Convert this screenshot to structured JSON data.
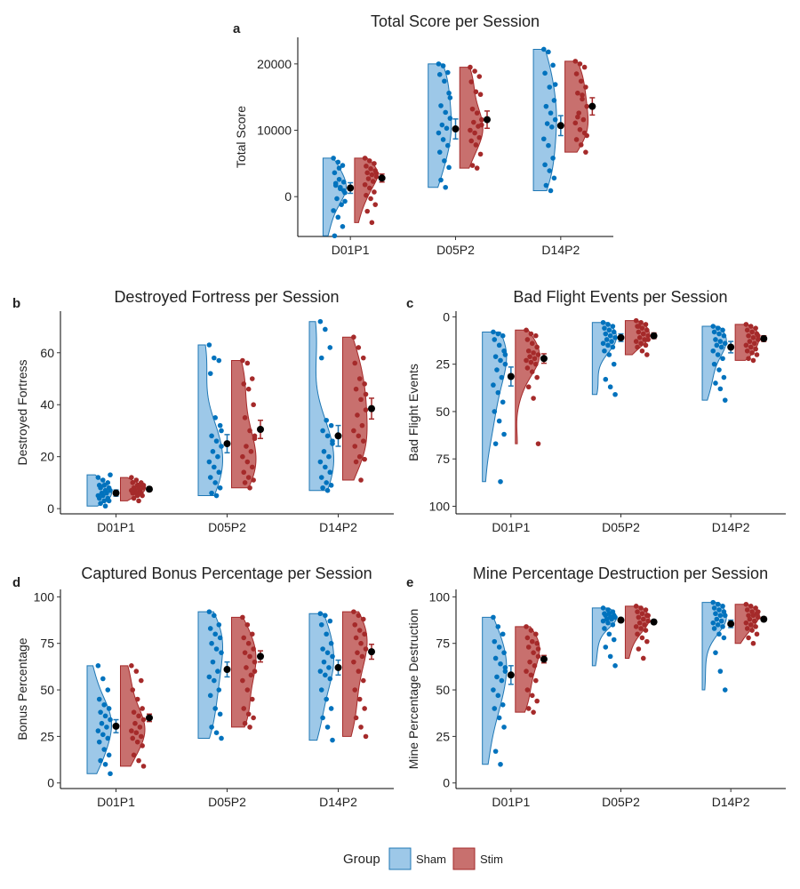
{
  "legend": {
    "title": "Group",
    "items": [
      {
        "label": "Sham",
        "fill": "#9DC8E8",
        "stroke": "#1F77B4"
      },
      {
        "label": "Stim",
        "fill": "#C8706E",
        "stroke": "#A52A2A"
      }
    ]
  },
  "colors": {
    "sham_point": "#0072BD",
    "stim_point": "#A52A2A",
    "mean_point": "#000000"
  },
  "chart_data": [
    {
      "panel": "a",
      "type": "scatter",
      "title": "Total Score per Session",
      "xlabel": "",
      "ylabel": "Total Score",
      "categories": [
        "D01P1",
        "D05P2",
        "D14P2"
      ],
      "yticks": [
        0,
        10000,
        20000
      ],
      "ylim": [
        -6000,
        24000
      ],
      "reverse_y": false,
      "series": [
        {
          "name": "Sham",
          "mean": [
            1300,
            10200,
            10700
          ],
          "se": [
            800,
            1500,
            1500
          ],
          "points": [
            [
              5800,
              5200,
              4700,
              3600,
              2600,
              2200,
              1700,
              1200,
              600,
              -300,
              -1200,
              -2100,
              -3100,
              -4500,
              -5900,
              4300,
              900,
              2000,
              1400,
              -700
            ],
            [
              20000,
              19700,
              18700,
              18400,
              17400,
              15600,
              13700,
              12700,
              11800,
              10800,
              10300,
              9600,
              8600,
              7700,
              6700,
              5400,
              4400,
              2500,
              1400,
              14900
            ],
            [
              22200,
              21800,
              19800,
              18600,
              16500,
              14500,
              13600,
              12600,
              11600,
              11000,
              10500,
              8700,
              7700,
              5800,
              4800,
              3900,
              2800,
              1700,
              900,
              16900
            ]
          ]
        },
        {
          "name": "Stim",
          "mean": [
            2800,
            11600,
            13600
          ],
          "se": [
            600,
            1300,
            1300
          ],
          "points": [
            [
              5800,
              5400,
              5000,
              4600,
              4200,
              3900,
              3600,
              3300,
              3000,
              2700,
              2300,
              1800,
              1300,
              700,
              200,
              -300,
              -1200,
              -2200,
              -3900,
              3500
            ],
            [
              19500,
              18900,
              18100,
              17300,
              15800,
              15400,
              13200,
              12600,
              11600,
              11200,
              10600,
              10000,
              9600,
              8900,
              8400,
              7800,
              6400,
              4700,
              4300,
              10800
            ],
            [
              20400,
              20000,
              19500,
              18500,
              17400,
              16500,
              15600,
              14700,
              13600,
              12600,
              11600,
              11100,
              10100,
              9600,
              8600,
              7800,
              6700,
              12000,
              15300,
              9200
            ]
          ]
        }
      ]
    },
    {
      "panel": "b",
      "type": "scatter",
      "title": "Destroyed Fortress per Session",
      "xlabel": "",
      "ylabel": "Destroyed Fortress",
      "categories": [
        "D01P1",
        "D05P2",
        "D14P2"
      ],
      "yticks": [
        0,
        20,
        40,
        60
      ],
      "ylim": [
        -2,
        76
      ],
      "reverse_y": false,
      "series": [
        {
          "name": "Sham",
          "mean": [
            6,
            25,
            28
          ],
          "se": [
            1.2,
            3.5,
            4
          ],
          "points": [
            [
              12,
              11,
              10,
              9,
              9,
              8,
              8,
              7,
              7,
              6,
              6,
              5,
              5,
              4,
              4,
              3,
              3,
              2,
              1,
              13
            ],
            [
              63,
              58,
              57,
              52,
              35,
              32,
              28,
              26,
              24,
              22,
              20,
              18,
              16,
              14,
              12,
              10,
              8,
              6,
              5,
              30
            ],
            [
              72,
              69,
              62,
              58,
              34,
              32,
              30,
              28,
              25,
              22,
              20,
              18,
              16,
              14,
              12,
              10,
              9,
              8,
              7,
              26
            ]
          ]
        },
        {
          "name": "Stim",
          "mean": [
            7.5,
            30.5,
            38.5
          ],
          "se": [
            0.8,
            3.5,
            4
          ],
          "points": [
            [
              12,
              11,
              10,
              10,
              9,
              9,
              8,
              8,
              8,
              7,
              7,
              7,
              6,
              6,
              6,
              5,
              5,
              4,
              3,
              9
            ],
            [
              57,
              56,
              50,
              48,
              46,
              40,
              35,
              30,
              27,
              24,
              22,
              20,
              18,
              16,
              14,
              12,
              11,
              10,
              8,
              28
            ],
            [
              66,
              62,
              58,
              56,
              50,
              48,
              46,
              42,
              38,
              36,
              32,
              30,
              28,
              26,
              24,
              20,
              19,
              18,
              11,
              44
            ]
          ]
        }
      ]
    },
    {
      "panel": "c",
      "type": "scatter",
      "title": "Bad Flight Events per Session",
      "xlabel": "",
      "ylabel": "Bad Flight Events",
      "categories": [
        "D01P1",
        "D05P2",
        "D14P2"
      ],
      "yticks": [
        0,
        25,
        50,
        75,
        100
      ],
      "ylim": [
        -3,
        104
      ],
      "reverse_y": true,
      "series": [
        {
          "name": "Sham",
          "mean": [
            31.5,
            11,
            16
          ],
          "se": [
            5,
            2,
            3
          ],
          "points": [
            [
              8,
              9,
              10,
              12,
              15,
              18,
              21,
              23,
              25,
              28,
              32,
              36,
              40,
              45,
              50,
              55,
              62,
              67,
              87,
              20
            ],
            [
              3,
              4,
              5,
              6,
              7,
              8,
              9,
              10,
              11,
              12,
              13,
              14,
              15,
              16,
              18,
              20,
              25,
              33,
              37,
              41
            ],
            [
              5,
              6,
              7,
              8,
              9,
              10,
              12,
              13,
              14,
              15,
              16,
              18,
              20,
              22,
              25,
              28,
              32,
              35,
              38,
              44
            ]
          ]
        },
        {
          "name": "Stim",
          "mean": [
            22,
            10,
            11.5
          ],
          "se": [
            2.5,
            1.5,
            1.5
          ],
          "points": [
            [
              7,
              9,
              10,
              12,
              14,
              16,
              18,
              19,
              20,
              21,
              22,
              23,
              24,
              25,
              27,
              29,
              32,
              37,
              43,
              67
            ],
            [
              2,
              3,
              4,
              5,
              6,
              7,
              8,
              9,
              10,
              11,
              12,
              13,
              14,
              15,
              16,
              18,
              20,
              5,
              9,
              12
            ],
            [
              4,
              5,
              6,
              7,
              8,
              9,
              10,
              11,
              12,
              13,
              14,
              15,
              16,
              17,
              18,
              19,
              20,
              22,
              23,
              10
            ]
          ]
        }
      ]
    },
    {
      "panel": "d",
      "type": "scatter",
      "title": "Captured Bonus Percentage per Session",
      "xlabel": "",
      "ylabel": "Bonus Percentage",
      "categories": [
        "D01P1",
        "D05P2",
        "D14P2"
      ],
      "yticks": [
        0,
        25,
        50,
        75,
        100
      ],
      "ylim": [
        -3,
        104
      ],
      "reverse_y": false,
      "series": [
        {
          "name": "Sham",
          "mean": [
            30.5,
            61,
            62
          ],
          "se": [
            3.5,
            4,
            4
          ],
          "points": [
            [
              63,
              56,
              50,
              45,
              42,
              40,
              38,
              36,
              34,
              32,
              30,
              28,
              26,
              24,
              22,
              18,
              15,
              12,
              10,
              5
            ],
            [
              92,
              90,
              85,
              83,
              80,
              78,
              75,
              72,
              70,
              65,
              60,
              57,
              55,
              50,
              47,
              40,
              37,
              30,
              27,
              24
            ],
            [
              91,
              90,
              87,
              85,
              80,
              75,
              72,
              70,
              68,
              65,
              62,
              60,
              58,
              56,
              50,
              45,
              40,
              35,
              30,
              23
            ]
          ]
        },
        {
          "name": "Stim",
          "mean": [
            35,
            68,
            70.5
          ],
          "se": [
            2,
            3,
            4
          ],
          "points": [
            [
              63,
              60,
              55,
              50,
              45,
              40,
              38,
              36,
              34,
              32,
              30,
              28,
              27,
              25,
              24,
              22,
              20,
              15,
              12,
              9
            ],
            [
              89,
              85,
              80,
              78,
              75,
              72,
              70,
              68,
              65,
              62,
              58,
              55,
              50,
              45,
              40,
              37,
              35,
              32,
              30,
              60
            ],
            [
              92,
              90,
              88,
              85,
              82,
              80,
              78,
              75,
              72,
              70,
              68,
              65,
              60,
              55,
              50,
              45,
              40,
              35,
              30,
              25
            ]
          ]
        }
      ]
    },
    {
      "panel": "e",
      "type": "scatter",
      "title": "Mine Percentage Destruction per Session",
      "xlabel": "",
      "ylabel": "Mine Percentage Destruction",
      "categories": [
        "D01P1",
        "D05P2",
        "D14P2"
      ],
      "yticks": [
        0,
        25,
        50,
        75,
        100
      ],
      "ylim": [
        -3,
        104
      ],
      "reverse_y": false,
      "series": [
        {
          "name": "Sham",
          "mean": [
            58,
            87.5,
            85.5
          ],
          "se": [
            5,
            1,
            2
          ],
          "points": [
            [
              89,
              84,
              80,
              76,
              73,
              70,
              67,
              64,
              60,
              57,
              55,
              50,
              47,
              42,
              40,
              35,
              30,
              17,
              10,
              62
            ],
            [
              94,
              93,
              92,
              91,
              91,
              90,
              90,
              89,
              89,
              88,
              88,
              87,
              86,
              85,
              83,
              80,
              77,
              73,
              68,
              63
            ],
            [
              97,
              96,
              95,
              94,
              93,
              92,
              91,
              90,
              90,
              88,
              87,
              86,
              85,
              84,
              83,
              80,
              78,
              70,
              60,
              50
            ]
          ]
        },
        {
          "name": "Stim",
          "mean": [
            66.5,
            86.5,
            88
          ],
          "se": [
            2,
            1,
            1
          ],
          "points": [
            [
              84,
              82,
              80,
              78,
              76,
              75,
              73,
              70,
              68,
              65,
              63,
              60,
              58,
              55,
              50,
              47,
              44,
              40,
              38,
              72
            ],
            [
              95,
              94,
              93,
              92,
              91,
              90,
              89,
              88,
              87,
              86,
              85,
              84,
              83,
              82,
              80,
              78,
              76,
              72,
              67,
              90
            ],
            [
              96,
              95,
              94,
              93,
              92,
              91,
              90,
              90,
              89,
              88,
              87,
              86,
              85,
              84,
              83,
              82,
              80,
              78,
              75,
              92
            ]
          ]
        }
      ]
    }
  ]
}
